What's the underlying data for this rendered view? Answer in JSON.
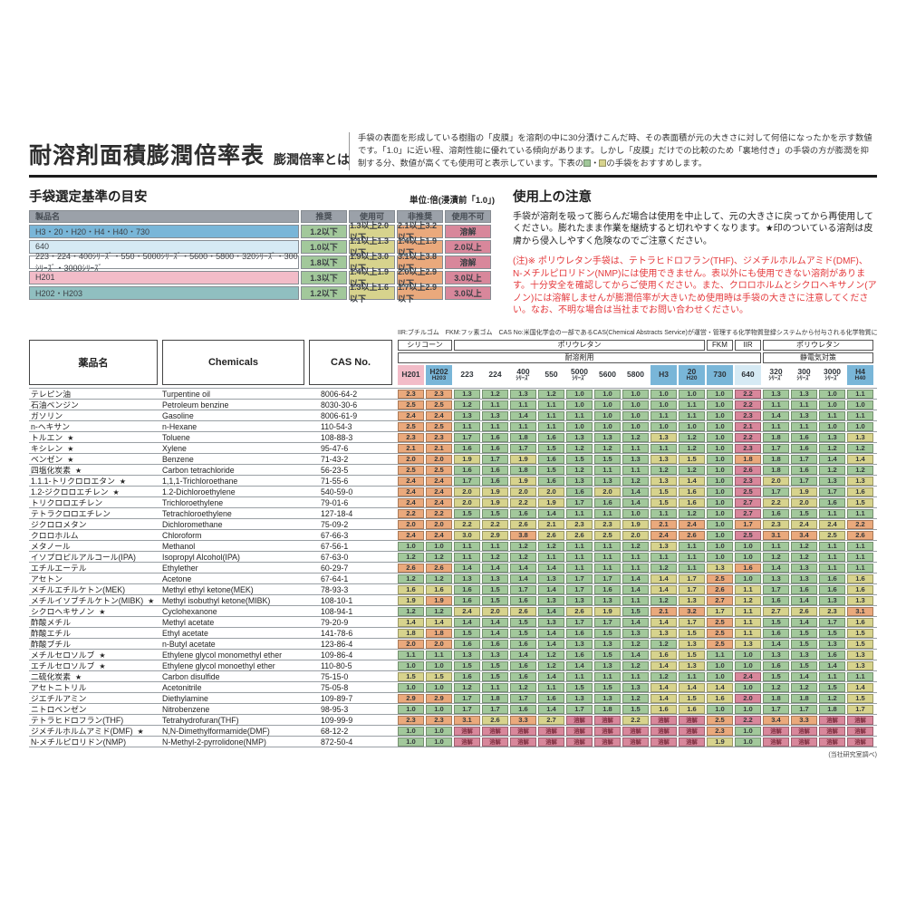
{
  "header": {
    "title": "耐溶剤面積膨潤倍率表",
    "subtitle": "膨潤倍率とは",
    "description_main": "手袋の表面を形成している樹脂の「皮膜」を溶剤の中に30分漬けこんだ時、その表面積が元の大きさに対して何倍になったかを示す数値です。「1.0」に近い程、溶剤性能に優れている傾向があります。しかし「皮膜」だけでの比較のため「裏地付き」の手袋の方が膨潤を抑制する分、数値が高くても使用可と表示しています。下表の",
    "swatch_separator": "・",
    "description_tail": "の手袋をおすすめします。"
  },
  "criteria": {
    "title": "手袋選定基準の目安",
    "unit_label": "単位:倍(浸漬前「1.0」)",
    "headers": [
      "製品名",
      "推奨",
      "使用可",
      "非推奨",
      "使用不可"
    ],
    "rows": [
      {
        "name": "H3・20・H20・H4・H40・730",
        "color": "blue",
        "values": [
          "1.2以下",
          "1.3以上2.0以下",
          "2.1以上3.2以下",
          "溶解"
        ]
      },
      {
        "name": "640",
        "color": "paleblue",
        "values": [
          "1.0以下",
          "1.1以上1.3以下",
          "1.4以上1.9以下",
          "2.0以上"
        ]
      },
      {
        "name": "223・224・400ｼﾘｰｽﾞ・550・5000ｼﾘｰｽﾞ・5600・5800・320ｼﾘｰｽﾞ・300ｼﾘｰｽﾞ・3000ｼﾘｰｽﾞ",
        "color": "white",
        "values": [
          "1.8以下",
          "1.9以上3.0以下",
          "3.1以上3.8以下",
          "溶解"
        ]
      },
      {
        "name": "H201",
        "color": "pink",
        "values": [
          "1.3以下",
          "1.4以上1.9以下",
          "2.0以上2.9以下",
          "3.0以上"
        ]
      },
      {
        "name": "H202・H203",
        "color": "teal",
        "values": [
          "1.2以下",
          "1.3以上1.6以下",
          "1.7以上2.9以下",
          "3.0以上"
        ]
      }
    ]
  },
  "notes": {
    "title": "使用上の注意",
    "paragraph_black": "手袋が溶剤を吸って膨らんだ場合は使用を中止して、元の大きさに戻ってから再使用してください。膨れたまま作業を継続すると切れやすくなります。★印のついている溶剤は皮膚から侵入しやすく危険なのでご注意ください。",
    "paragraph_red": "(注)※ ポリウレタン手袋は、テトラヒドロフラン(THF)、ジメチルホルムアミド(DMF)、N-メチルピロリドン(NMP)には使用できません。表以外にも使用できない溶剤があります。十分安全を確認してからご使用ください。また、クロロホルムとシクロヘキサノン(アノン)には溶解しませんが膨潤倍率が大きいため使用時は手袋の大きさに注意してください。なお、不明な場合は当社までお問い合わせください。"
  },
  "table": {
    "legend": "IIR:ブチルゴム　FKM:フッ素ゴム　CAS No:米国化学会の一部であるCAS(Chemical Abstracts Service)が運営・管理する化学物質登録システムから付与される化学物質に固有の数値識別番号のこと",
    "left_headers": {
      "jp": "薬品名",
      "en": "Chemicals",
      "cas": "CAS No."
    },
    "material_groups": [
      {
        "label": "シリコーン",
        "cols": 2
      },
      {
        "label": "ポリウレタン",
        "cols": 9
      },
      {
        "label": "FKM",
        "cols": 1
      },
      {
        "label": "IIR",
        "cols": 1
      },
      {
        "label": "ポリウレタン",
        "cols": 4
      }
    ],
    "usage_groups": [
      {
        "label": "耐溶剤用",
        "cols": 13
      },
      {
        "label": "静電気対策",
        "cols": 4
      }
    ],
    "columns": [
      {
        "line1": "H201",
        "line2": "",
        "bg": "pink",
        "group": "D"
      },
      {
        "line1": "H202",
        "line2": "H203",
        "bg": "blue",
        "group": "E"
      },
      {
        "line1": "223",
        "line2": "",
        "bg": "white",
        "group": "C"
      },
      {
        "line1": "224",
        "line2": "",
        "bg": "white",
        "group": "C"
      },
      {
        "line1": "400",
        "line2": "ｼﾘｰｽﾞ",
        "bg": "white",
        "group": "C"
      },
      {
        "line1": "550",
        "line2": "",
        "bg": "white",
        "group": "C"
      },
      {
        "line1": "5000",
        "line2": "ｼﾘｰｽﾞ",
        "bg": "white",
        "group": "C"
      },
      {
        "line1": "5600",
        "line2": "",
        "bg": "white",
        "group": "C"
      },
      {
        "line1": "5800",
        "line2": "",
        "bg": "white",
        "group": "C"
      },
      {
        "line1": "H3",
        "line2": "",
        "bg": "blue",
        "group": "A"
      },
      {
        "line1": "20",
        "line2": "H20",
        "bg": "blue",
        "group": "A"
      },
      {
        "line1": "730",
        "line2": "",
        "bg": "blue",
        "group": "A"
      },
      {
        "line1": "640",
        "line2": "",
        "bg": "paleblue",
        "group": "B"
      },
      {
        "line1": "320",
        "line2": "ｼﾘｰｽﾞ",
        "bg": "white",
        "group": "C"
      },
      {
        "line1": "300",
        "line2": "ｼﾘｰｽﾞ",
        "bg": "white",
        "group": "C"
      },
      {
        "line1": "3000",
        "line2": "ｼﾘｰｽﾞ",
        "bg": "white",
        "group": "C"
      },
      {
        "line1": "H4",
        "line2": "H40",
        "bg": "blue",
        "group": "A"
      }
    ],
    "thresholds": {
      "A": [
        1.25,
        2.05,
        3.25
      ],
      "B": [
        1.05,
        1.35,
        1.95
      ],
      "C": [
        1.85,
        3.05,
        3.85
      ],
      "D": [
        1.35,
        1.95,
        2.95
      ],
      "E": [
        1.25,
        1.65,
        2.95
      ]
    },
    "dissolve_label": "溶解",
    "star_symbol": "★",
    "footnote": "(当社研究室調べ)",
    "rows": [
      {
        "jp": "テレピン油",
        "star": false,
        "en": "Turpentine oil",
        "cas": "8006-64-2",
        "values": [
          "2.3",
          "2.3",
          "1.3",
          "1.2",
          "1.3",
          "1.2",
          "1.0",
          "1.0",
          "1.0",
          "1.0",
          "1.0",
          "1.0",
          "2.2",
          "1.3",
          "1.3",
          "1.0",
          "1.1"
        ]
      },
      {
        "jp": "石油ベンジン",
        "star": false,
        "en": "Petroleum benzine",
        "cas": "8030-30-6",
        "values": [
          "2.5",
          "2.5",
          "1.2",
          "1.1",
          "1.1",
          "1.1",
          "1.0",
          "1.0",
          "1.0",
          "1.0",
          "1.1",
          "1.0",
          "2.2",
          "1.1",
          "1.1",
          "1.0",
          "1.0"
        ]
      },
      {
        "jp": "ガソリン",
        "star": false,
        "en": "Gasoline",
        "cas": "8006-61-9",
        "values": [
          "2.4",
          "2.4",
          "1.3",
          "1.3",
          "1.4",
          "1.1",
          "1.1",
          "1.0",
          "1.0",
          "1.1",
          "1.1",
          "1.0",
          "2.3",
          "1.4",
          "1.3",
          "1.1",
          "1.1"
        ]
      },
      {
        "jp": "n-ヘキサン",
        "star": false,
        "en": "n-Hexane",
        "cas": "110-54-3",
        "values": [
          "2.5",
          "2.5",
          "1.1",
          "1.1",
          "1.1",
          "1.1",
          "1.0",
          "1.0",
          "1.0",
          "1.0",
          "1.0",
          "1.0",
          "2.1",
          "1.1",
          "1.1",
          "1.0",
          "1.0"
        ]
      },
      {
        "jp": "トルエン",
        "star": true,
        "en": "Toluene",
        "cas": "108-88-3",
        "values": [
          "2.3",
          "2.3",
          "1.7",
          "1.6",
          "1.8",
          "1.6",
          "1.3",
          "1.3",
          "1.2",
          "1.3",
          "1.2",
          "1.0",
          "2.2",
          "1.8",
          "1.6",
          "1.3",
          "1.3"
        ]
      },
      {
        "jp": "キシレン",
        "star": true,
        "en": "Xylene",
        "cas": "95-47-6",
        "values": [
          "2.1",
          "2.1",
          "1.6",
          "1.6",
          "1.7",
          "1.5",
          "1.2",
          "1.2",
          "1.1",
          "1.1",
          "1.2",
          "1.0",
          "2.3",
          "1.7",
          "1.6",
          "1.2",
          "1.2"
        ]
      },
      {
        "jp": "ベンゼン",
        "star": true,
        "en": "Benzene",
        "cas": "71-43-2",
        "values": [
          "2.0",
          "2.0",
          "1.9",
          "1.7",
          "1.9",
          "1.6",
          "1.5",
          "1.5",
          "1.3",
          "1.3",
          "1.5",
          "1.0",
          "1.8",
          "1.8",
          "1.7",
          "1.4",
          "1.4"
        ]
      },
      {
        "jp": "四塩化炭素",
        "star": true,
        "en": "Carbon tetrachloride",
        "cas": "56-23-5",
        "values": [
          "2.5",
          "2.5",
          "1.6",
          "1.6",
          "1.8",
          "1.5",
          "1.2",
          "1.1",
          "1.1",
          "1.2",
          "1.2",
          "1.0",
          "2.6",
          "1.8",
          "1.6",
          "1.2",
          "1.2"
        ]
      },
      {
        "jp": "1.1.1-トリクロロエタン",
        "star": true,
        "en": "1,1,1-Trichloroethane",
        "cas": "71-55-6",
        "values": [
          "2.4",
          "2.4",
          "1.7",
          "1.6",
          "1.9",
          "1.6",
          "1.3",
          "1.3",
          "1.2",
          "1.3",
          "1.4",
          "1.0",
          "2.3",
          "2.0",
          "1.7",
          "1.3",
          "1.3"
        ]
      },
      {
        "jp": "1.2-ジクロロエチレン",
        "star": true,
        "en": "1.2-Dichloroethylene",
        "cas": "540-59-0",
        "values": [
          "2.4",
          "2.4",
          "2.0",
          "1.9",
          "2.0",
          "2.0",
          "1.6",
          "2.0",
          "1.4",
          "1.5",
          "1.6",
          "1.0",
          "2.5",
          "1.7",
          "1.9",
          "1.7",
          "1.6"
        ]
      },
      {
        "jp": "トリクロロエチレン",
        "star": false,
        "en": "Trichloroethylene",
        "cas": "79-01-6",
        "values": [
          "2.4",
          "2.4",
          "2.0",
          "1.9",
          "2.2",
          "1.9",
          "1.7",
          "1.6",
          "1.4",
          "1.5",
          "1.6",
          "1.0",
          "2.7",
          "2.2",
          "2.0",
          "1.6",
          "1.5"
        ]
      },
      {
        "jp": "テトラクロロエチレン",
        "star": false,
        "en": "Tetrachloroethylene",
        "cas": "127-18-4",
        "values": [
          "2.2",
          "2.2",
          "1.5",
          "1.5",
          "1.6",
          "1.4",
          "1.1",
          "1.1",
          "1.0",
          "1.1",
          "1.2",
          "1.0",
          "2.7",
          "1.6",
          "1.5",
          "1.1",
          "1.1"
        ]
      },
      {
        "jp": "ジクロロメタン",
        "star": false,
        "en": "Dichloromethane",
        "cas": "75-09-2",
        "values": [
          "2.0",
          "2.0",
          "2.2",
          "2.2",
          "2.6",
          "2.1",
          "2.3",
          "2.3",
          "1.9",
          "2.1",
          "2.4",
          "1.0",
          "1.7",
          "2.3",
          "2.4",
          "2.4",
          "2.2"
        ]
      },
      {
        "jp": "クロロホルム",
        "star": false,
        "en": "Chloroform",
        "cas": "67-66-3",
        "values": [
          "2.4",
          "2.4",
          "3.0",
          "2.9",
          "3.8",
          "2.6",
          "2.6",
          "2.5",
          "2.0",
          "2.4",
          "2.6",
          "1.0",
          "2.5",
          "3.1",
          "3.4",
          "2.5",
          "2.6"
        ]
      },
      {
        "jp": "メタノール",
        "star": false,
        "en": "Methanol",
        "cas": "67-56-1",
        "values": [
          "1.0",
          "1.0",
          "1.1",
          "1.1",
          "1.2",
          "1.2",
          "1.1",
          "1.1",
          "1.2",
          "1.3",
          "1.1",
          "1.0",
          "1.0",
          "1.1",
          "1.2",
          "1.1",
          "1.1"
        ]
      },
      {
        "jp": "イソプロピルアルコール(IPA)",
        "star": false,
        "en": "Isopropyl Alcohol(IPA)",
        "cas": "67-63-0",
        "values": [
          "1.2",
          "1.2",
          "1.1",
          "1.2",
          "1.2",
          "1.1",
          "1.1",
          "1.1",
          "1.1",
          "1.1",
          "1.1",
          "1.0",
          "1.0",
          "1.2",
          "1.2",
          "1.1",
          "1.1"
        ]
      },
      {
        "jp": "エチルエーテル",
        "star": false,
        "en": "Ethylether",
        "cas": "60-29-7",
        "values": [
          "2.6",
          "2.6",
          "1.4",
          "1.4",
          "1.4",
          "1.4",
          "1.1",
          "1.1",
          "1.1",
          "1.2",
          "1.1",
          "1.3",
          "1.6",
          "1.4",
          "1.3",
          "1.1",
          "1.1"
        ]
      },
      {
        "jp": "アセトン",
        "star": false,
        "en": "Acetone",
        "cas": "67-64-1",
        "values": [
          "1.2",
          "1.2",
          "1.3",
          "1.3",
          "1.4",
          "1.3",
          "1.7",
          "1.7",
          "1.4",
          "1.4",
          "1.7",
          "2.5",
          "1.0",
          "1.3",
          "1.3",
          "1.6",
          "1.6"
        ]
      },
      {
        "jp": "メチルエチルケトン(MEK)",
        "star": false,
        "en": "Methyl ethyl ketone(MEK)",
        "cas": "78-93-3",
        "values": [
          "1.6",
          "1.6",
          "1.6",
          "1.5",
          "1.7",
          "1.4",
          "1.7",
          "1.6",
          "1.4",
          "1.4",
          "1.7",
          "2.6",
          "1.1",
          "1.7",
          "1.6",
          "1.6",
          "1.6"
        ]
      },
      {
        "jp": "メチルイソブチルケトン(MIBK)",
        "star": true,
        "en": "Methyl isobuthyl ketone(MIBK)",
        "cas": "108-10-1",
        "values": [
          "1.9",
          "1.9",
          "1.6",
          "1.5",
          "1.6",
          "1.3",
          "1.3",
          "1.3",
          "1.1",
          "1.2",
          "1.3",
          "2.7",
          "1.2",
          "1.6",
          "1.4",
          "1.3",
          "1.3"
        ]
      },
      {
        "jp": "シクロヘキサノン",
        "star": true,
        "en": "Cyclohexanone",
        "cas": "108-94-1",
        "values": [
          "1.2",
          "1.2",
          "2.4",
          "2.0",
          "2.6",
          "1.4",
          "2.6",
          "1.9",
          "1.5",
          "2.1",
          "3.2",
          "1.7",
          "1.1",
          "2.7",
          "2.6",
          "2.3",
          "3.1"
        ]
      },
      {
        "jp": "酢酸メチル",
        "star": false,
        "en": "Methyl acetate",
        "cas": "79-20-9",
        "values": [
          "1.4",
          "1.4",
          "1.4",
          "1.4",
          "1.5",
          "1.3",
          "1.7",
          "1.7",
          "1.4",
          "1.4",
          "1.7",
          "2.5",
          "1.1",
          "1.5",
          "1.4",
          "1.7",
          "1.6"
        ]
      },
      {
        "jp": "酢酸エチル",
        "star": false,
        "en": "Ethyl acetate",
        "cas": "141-78-6",
        "values": [
          "1.8",
          "1.8",
          "1.5",
          "1.4",
          "1.5",
          "1.4",
          "1.6",
          "1.5",
          "1.3",
          "1.3",
          "1.5",
          "2.5",
          "1.1",
          "1.6",
          "1.5",
          "1.5",
          "1.5"
        ]
      },
      {
        "jp": "酢酸ブチル",
        "star": false,
        "en": "n-Butyl acetate",
        "cas": "123-86-4",
        "values": [
          "2.0",
          "2.0",
          "1.6",
          "1.6",
          "1.6",
          "1.4",
          "1.3",
          "1.3",
          "1.2",
          "1.2",
          "1.3",
          "2.5",
          "1.3",
          "1.4",
          "1.5",
          "1.3",
          "1.5"
        ]
      },
      {
        "jp": "メチルセロソルブ",
        "star": true,
        "en": "Ethylene glycol monomethyl ether",
        "cas": "109-86-4",
        "values": [
          "1.1",
          "1.1",
          "1.3",
          "1.3",
          "1.4",
          "1.2",
          "1.6",
          "1.5",
          "1.4",
          "1.6",
          "1.5",
          "1.1",
          "1.0",
          "1.3",
          "1.3",
          "1.6",
          "1.3"
        ]
      },
      {
        "jp": "エチルセロソルブ",
        "star": true,
        "en": "Ethylene glycol monoethyl ether",
        "cas": "110-80-5",
        "values": [
          "1.0",
          "1.0",
          "1.5",
          "1.5",
          "1.6",
          "1.2",
          "1.4",
          "1.3",
          "1.2",
          "1.4",
          "1.3",
          "1.0",
          "1.0",
          "1.6",
          "1.5",
          "1.4",
          "1.3"
        ]
      },
      {
        "jp": "二硫化炭素",
        "star": true,
        "en": "Carbon disulfide",
        "cas": "75-15-0",
        "values": [
          "1.5",
          "1.5",
          "1.6",
          "1.5",
          "1.6",
          "1.4",
          "1.1",
          "1.1",
          "1.1",
          "1.2",
          "1.1",
          "1.0",
          "2.4",
          "1.5",
          "1.4",
          "1.1",
          "1.1"
        ]
      },
      {
        "jp": "アセトニトリル",
        "star": false,
        "en": "Acetonitrile",
        "cas": "75-05-8",
        "values": [
          "1.0",
          "1.0",
          "1.2",
          "1.1",
          "1.2",
          "1.1",
          "1.5",
          "1.5",
          "1.3",
          "1.4",
          "1.4",
          "1.4",
          "1.0",
          "1.2",
          "1.2",
          "1.5",
          "1.4"
        ]
      },
      {
        "jp": "ジエチルアミン",
        "star": false,
        "en": "Diethylamine",
        "cas": "109-89-7",
        "values": [
          "2.9",
          "2.9",
          "1.7",
          "1.8",
          "1.7",
          "1.6",
          "1.3",
          "1.3",
          "1.2",
          "1.4",
          "1.5",
          "1.6",
          "2.0",
          "1.8",
          "1.8",
          "1.2",
          "1.5"
        ]
      },
      {
        "jp": "ニトロベンゼン",
        "star": false,
        "en": "Nitrobenzene",
        "cas": "98-95-3",
        "values": [
          "1.0",
          "1.0",
          "1.7",
          "1.7",
          "1.6",
          "1.4",
          "1.7",
          "1.8",
          "1.5",
          "1.6",
          "1.6",
          "1.0",
          "1.0",
          "1.7",
          "1.7",
          "1.8",
          "1.7"
        ]
      },
      {
        "jp": "テトラヒドロフラン(THF)",
        "star": false,
        "en": "Tetrahydrofuran(THF)",
        "cas": "109-99-9",
        "values": [
          "2.3",
          "2.3",
          "3.1",
          "2.6",
          "3.3",
          "2.7",
          "溶解",
          "溶解",
          "2.2",
          "溶解",
          "溶解",
          "2.5",
          "2.2",
          "3.4",
          "3.3",
          "溶解",
          "溶解"
        ]
      },
      {
        "jp": "ジメチルホルムアミド(DMF)",
        "star": true,
        "en": "N,N-Dimethylformamide(DMF)",
        "cas": "68-12-2",
        "values": [
          "1.0",
          "1.0",
          "溶解",
          "溶解",
          "溶解",
          "溶解",
          "溶解",
          "溶解",
          "溶解",
          "溶解",
          "溶解",
          "2.3",
          "1.0",
          "溶解",
          "溶解",
          "溶解",
          "溶解"
        ]
      },
      {
        "jp": "N-メチルピロリドン(NMP)",
        "star": false,
        "en": "N-Methyl-2-pyrrolidone(NMP)",
        "cas": "872-50-4",
        "values": [
          "1.0",
          "1.0",
          "溶解",
          "溶解",
          "溶解",
          "溶解",
          "溶解",
          "溶解",
          "溶解",
          "溶解",
          "溶解",
          "1.9",
          "1.0",
          "溶解",
          "溶解",
          "溶解",
          "溶解"
        ]
      }
    ]
  },
  "colors": {
    "green": "#a2c89b",
    "yellow": "#d7d38d",
    "orange": "#eaa97c",
    "red": "#d8879b",
    "blue": "#79b6d8",
    "paleblue": "#d6eaf4",
    "pink": "#f2bcc8",
    "teal": "#90bfc0"
  }
}
